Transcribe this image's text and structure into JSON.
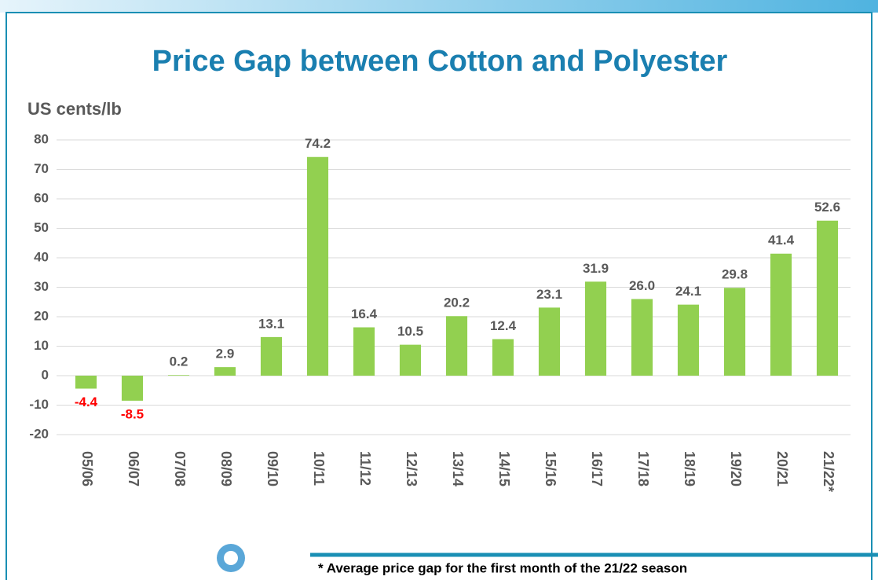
{
  "chart_data": {
    "type": "bar",
    "title": "Price Gap between Cotton and Polyester",
    "y_label": "US cents/lb",
    "categories": [
      "05/06",
      "06/07",
      "07/08",
      "08/09",
      "09/10",
      "10/11",
      "11/12",
      "12/13",
      "13/14",
      "14/15",
      "15/16",
      "16/17",
      "17/18",
      "18/19",
      "19/20",
      "20/21",
      "21/22*"
    ],
    "values": [
      -4.4,
      -8.5,
      0.2,
      2.9,
      13.1,
      74.2,
      16.4,
      10.5,
      20.2,
      12.4,
      23.1,
      31.9,
      26.0,
      24.1,
      29.8,
      41.4,
      52.6
    ],
    "value_labels": [
      "-4.4",
      "-8.5",
      "0.2",
      "2.9",
      "13.1",
      "74.2",
      "16.4",
      "10.5",
      "20.2",
      "12.4",
      "23.1",
      "31.9",
      "26.0",
      "24.1",
      "29.8",
      "41.4",
      "52.6"
    ],
    "color": "#92d050",
    "negative_label_color": "#ff0000",
    "ylim": [
      -20,
      80
    ],
    "yticks": [
      -20,
      -10,
      0,
      10,
      20,
      30,
      40,
      50,
      60,
      70,
      80
    ],
    "grid": true,
    "footnote": "* Average price gap for the first month of the 21/22 season"
  }
}
